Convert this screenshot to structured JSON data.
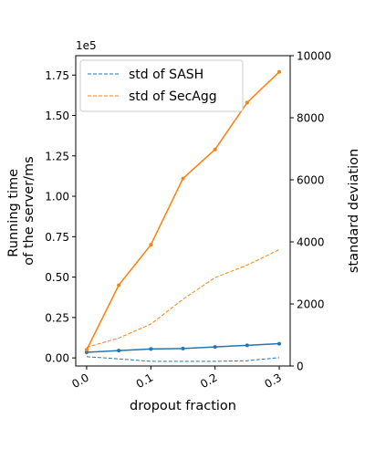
{
  "chart_data": {
    "type": "line",
    "x": [
      0.0,
      0.05,
      0.1,
      0.15,
      0.2,
      0.25,
      0.3
    ],
    "x_ticks": [
      0.0,
      0.1,
      0.2,
      0.3
    ],
    "x_tick_labels": [
      "0.0",
      "0.1",
      "0.2",
      "0.3"
    ],
    "xlabel": "dropout fraction",
    "xlim": [
      -0.017,
      0.317
    ],
    "left_axis": {
      "label_lines": [
        "Running time",
        "of the server/ms"
      ],
      "offset_text": "1e5",
      "ylim": [
        -0.05,
        1.87
      ],
      "ticks": [
        0.0,
        0.25,
        0.5,
        0.75,
        1.0,
        1.25,
        1.5,
        1.75
      ],
      "tick_labels": [
        "0.00",
        "0.25",
        "0.50",
        "0.75",
        "1.00",
        "1.25",
        "1.50",
        "1.75"
      ]
    },
    "right_axis": {
      "label": "standard deviation",
      "ylim": [
        0,
        10000
      ],
      "ticks": [
        0,
        2000,
        4000,
        6000,
        8000,
        10000
      ],
      "tick_labels": [
        "0",
        "2000",
        "4000",
        "6000",
        "8000",
        "10000"
      ]
    },
    "series": [
      {
        "axis": "left",
        "style": "solid",
        "marker": true,
        "color": "#1f77b4",
        "values": [
          0.035,
          0.045,
          0.055,
          0.058,
          0.068,
          0.078,
          0.088
        ]
      },
      {
        "axis": "left",
        "style": "solid",
        "marker": true,
        "color": "#ff7f0e",
        "values": [
          0.05,
          0.45,
          0.7,
          1.11,
          1.29,
          1.58,
          1.77
        ]
      },
      {
        "axis": "right",
        "style": "dashed",
        "marker": false,
        "color": "#1f77b4",
        "name": "std of SASH",
        "values": [
          300,
          230,
          150,
          150,
          150,
          170,
          270
        ]
      },
      {
        "axis": "right",
        "style": "dashed",
        "marker": false,
        "color": "#ff7f0e",
        "name": "std of SecAgg",
        "values": [
          600,
          900,
          1350,
          2150,
          2850,
          3250,
          3750
        ]
      }
    ],
    "legend": {
      "placement": "top-left",
      "entries": [
        "std of SASH",
        "std of SecAgg"
      ]
    },
    "grid": false
  }
}
